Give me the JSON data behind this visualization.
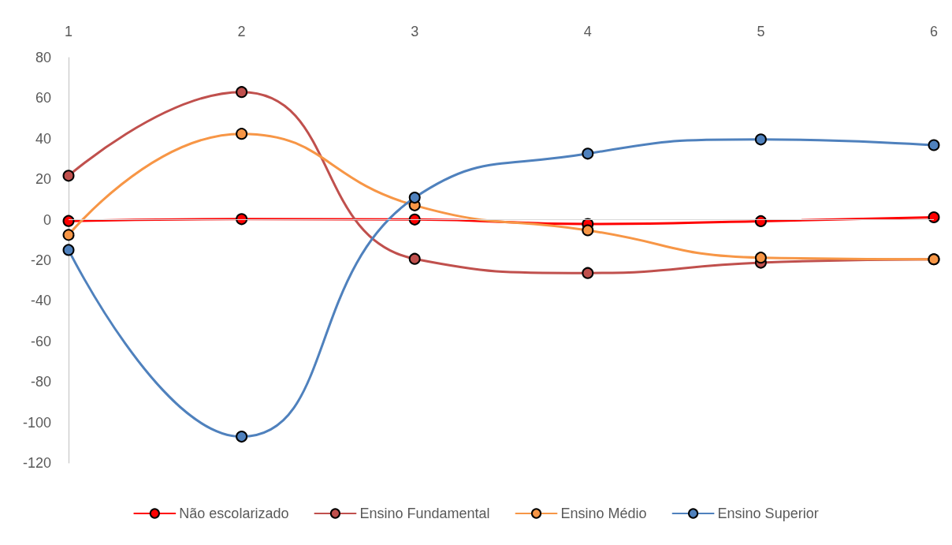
{
  "chart_data": {
    "type": "line",
    "categories": [
      "1",
      "2",
      "3",
      "4",
      "5",
      "6"
    ],
    "series": [
      {
        "name": "Não escolarizado",
        "color": "#ff0000",
        "values": [
          -0.6,
          0.3,
          0.1,
          -2.1,
          -0.7,
          1.2
        ]
      },
      {
        "name": "Ensino Fundamental",
        "color": "#c0504d",
        "values": [
          21.7,
          63,
          -19.3,
          -26.3,
          -21.2,
          -19.5
        ]
      },
      {
        "name": "Ensino Médio",
        "color": "#f79646",
        "values": [
          -7.5,
          42.4,
          7.1,
          -5.2,
          -18.7,
          -19.5
        ]
      },
      {
        "name": "Ensino Superior",
        "color": "#4f81bd",
        "values": [
          -14.9,
          -107,
          10.9,
          32.6,
          39.6,
          36.8
        ]
      }
    ],
    "ylim": [
      -120,
      80
    ],
    "yticks": [
      -120,
      -100,
      -80,
      -60,
      -40,
      -20,
      0,
      20,
      40,
      60,
      80
    ],
    "ref_lines": [
      {
        "axis": "y",
        "value": 0,
        "color": "#d9d9d9"
      }
    ],
    "grid": false,
    "legend": "bottom",
    "marker": "circle",
    "line_style": "solid"
  }
}
